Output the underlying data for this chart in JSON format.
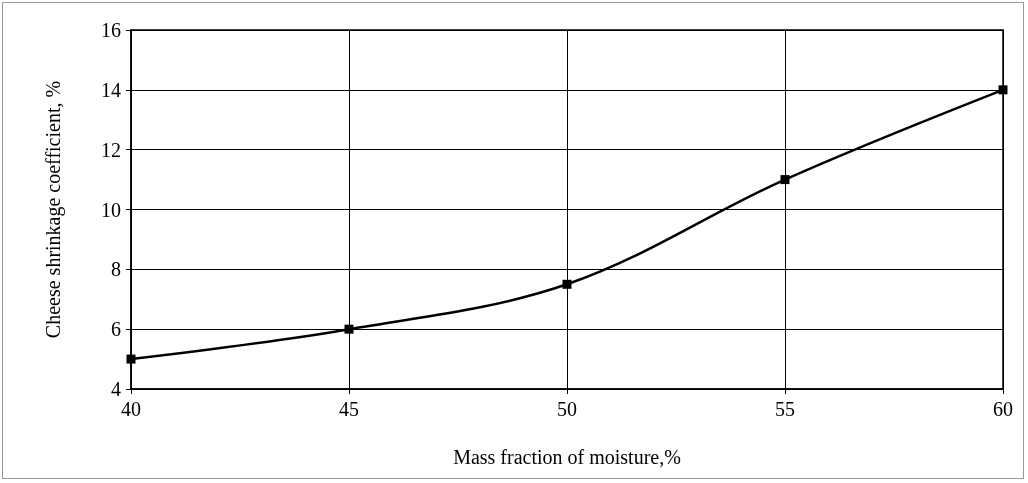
{
  "chart_data": {
    "type": "line",
    "xlabel": "Mass fraction of moisture,%",
    "ylabel": "Cheese shrinkage coefficient, %",
    "x": [
      40,
      45,
      50,
      55,
      60
    ],
    "series": [
      {
        "color": "#000000",
        "values": [
          5,
          6,
          7.5,
          11,
          14
        ]
      }
    ],
    "xlim": [
      40,
      60
    ],
    "xticks": [
      40,
      45,
      50,
      55,
      60
    ],
    "ylim": [
      4,
      16
    ],
    "yticks": [
      4,
      6,
      8,
      10,
      12,
      14,
      16
    ],
    "grid": true,
    "marker": "square",
    "line_style": "solid"
  }
}
